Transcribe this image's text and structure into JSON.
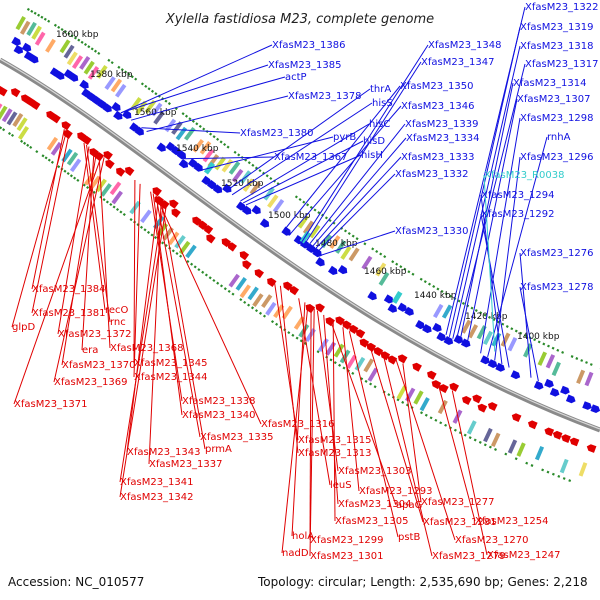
{
  "title": "Xylella fastidiosa M23, complete genome",
  "footer": {
    "accession": "Accession: NC_010577",
    "summary": "Topology: circular; Length: 2,535,690 bp; Genes: 2,218"
  },
  "colors": {
    "forward": "#1010e0",
    "reverse": "#e00000",
    "rna": "#33cccc",
    "backbone": "#888888",
    "gc_tick": "#2a8a2a"
  },
  "kbp_ticks": [
    "1600 kbp",
    "1580 kbp",
    "1560 kbp",
    "1540 kbp",
    "1520 kbp",
    "1500 kbp",
    "1480 kbp",
    "1460 kbp",
    "1440 kbp",
    "1420 kbp",
    "1400 kbp"
  ],
  "labels": {
    "forward": [
      "XfasM23_1386",
      "XfasM23_1385",
      "actP",
      "XfasM23_1378",
      "XfasM23_1380",
      "XfasM23_1367",
      "pyrB",
      "thrA",
      "hisS",
      "hisC",
      "hisD",
      "hisH",
      "XfasM23_1348",
      "XfasM23_1347",
      "XfasM23_1350",
      "XfasM23_1346",
      "XfasM23_1339",
      "XfasM23_1334",
      "XfasM23_1333",
      "XfasM23_1332",
      "XfasM23_1330",
      "XfasM23_1322",
      "XfasM23_1319",
      "XfasM23_1318",
      "XfasM23_1317",
      "XfasM23_1314",
      "XfasM23_1307",
      "XfasM23_1298",
      "rnhA",
      "XfasM23_1296",
      "XfasM23_1294",
      "XfasM23_1292",
      "XfasM23_1276",
      "XfasM23_1278"
    ],
    "rna": [
      "XfasM23_R0038"
    ],
    "reverse": [
      "XfasM23_1384",
      "XfasM23_1381",
      "glpD",
      "recO",
      "rnc",
      "XfasM23_1372",
      "era",
      "XfasM23_1368",
      "XfasM23_1370",
      "XfasM23_1345",
      "XfasM23_1369",
      "XfasM23_1344",
      "XfasM23_1371",
      "XfasM23_1338",
      "XfasM23_1340",
      "XfasM23_1316",
      "XfasM23_1335",
      "XfasM23_1343",
      "prmA",
      "XfasM23_1337",
      "XfasM23_1341",
      "XfasM23_1342",
      "XfasM23_1315",
      "XfasM23_1313",
      "XfasM23_1303",
      "leuS",
      "XfasM23_1293",
      "XfasM23_1304",
      "apaG",
      "XfasM23_1277",
      "XfasM23_1305",
      "XfasM23_1281",
      "XfasM23_1254",
      "holA",
      "XfasM23_1299",
      "pstB",
      "XfasM23_1270",
      "nadD",
      "XfasM23_1301",
      "XfasM23_1279",
      "XfasM23_1247"
    ]
  }
}
